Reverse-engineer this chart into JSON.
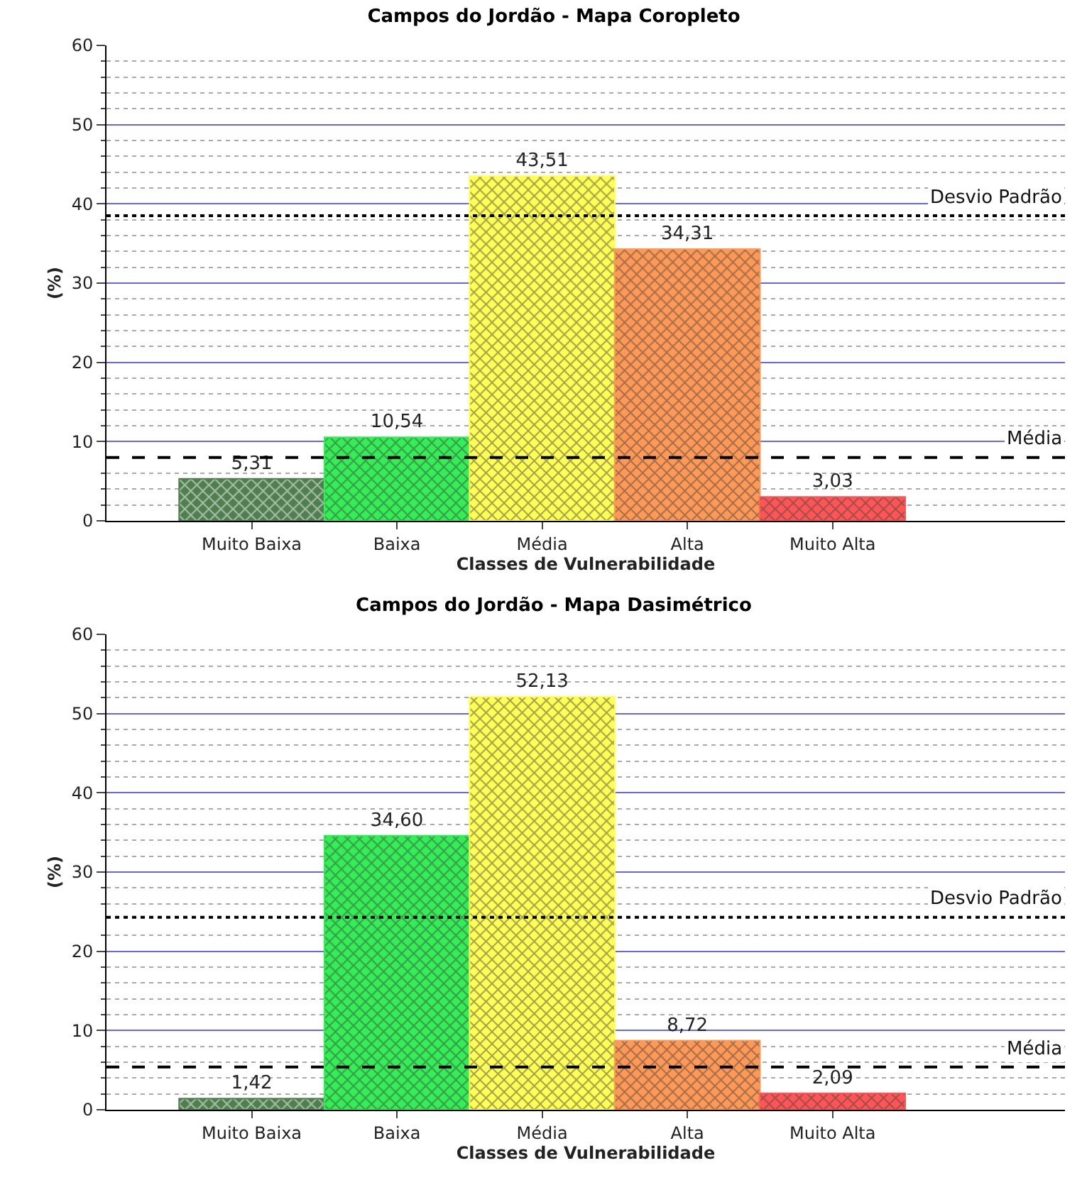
{
  "chart_data": [
    {
      "type": "bar",
      "title": "Campos do Jordão - Mapa Coropleto",
      "xlabel": "Classes de Vulnerabilidade",
      "ylabel": "(%)",
      "categories": [
        "Muito Baixa",
        "Baixa",
        "Média",
        "Alta",
        "Muito Alta"
      ],
      "values": [
        5.31,
        10.54,
        43.51,
        34.31,
        3.03
      ],
      "colors": [
        "#4f7f4f",
        "#33ee55",
        "#ffff55",
        "#ff9955",
        "#ff5555"
      ],
      "value_labels": [
        "5,31",
        "10,54",
        "43,51",
        "34,31",
        "3,03"
      ],
      "ylim": [
        0,
        60
      ],
      "yticks": [
        0,
        10,
        20,
        30,
        40,
        50,
        60
      ],
      "grid": "y",
      "ref_lines": [
        {
          "axis": "y",
          "value": 38.5,
          "label": "Desvio Padrão",
          "line_style": "dotted"
        },
        {
          "axis": "y",
          "value": 8,
          "label": "Média",
          "line_style": "dashed"
        }
      ]
    },
    {
      "type": "bar",
      "title": "Campos do Jordão - Mapa Dasimétrico",
      "xlabel": "Classes de Vulnerabilidade",
      "ylabel": "(%)",
      "categories": [
        "Muito Baixa",
        "Baixa",
        "Média",
        "Alta",
        "Muito Alta"
      ],
      "values": [
        1.42,
        34.6,
        52.13,
        8.72,
        2.09
      ],
      "colors": [
        "#4f7f4f",
        "#33ee55",
        "#ffff55",
        "#ff9955",
        "#ff5555"
      ],
      "value_labels": [
        "1,42",
        "34,60",
        "52,13",
        "8,72",
        "2,09"
      ],
      "ylim": [
        0,
        60
      ],
      "yticks": [
        0,
        10,
        20,
        30,
        40,
        50,
        60
      ],
      "grid": "y",
      "ref_lines": [
        {
          "axis": "y",
          "value": 24.3,
          "label": "Desvio Padrão",
          "line_style": "dotted"
        },
        {
          "axis": "y",
          "value": 5.4,
          "label": "Média",
          "line_style": "dashed"
        }
      ]
    }
  ]
}
